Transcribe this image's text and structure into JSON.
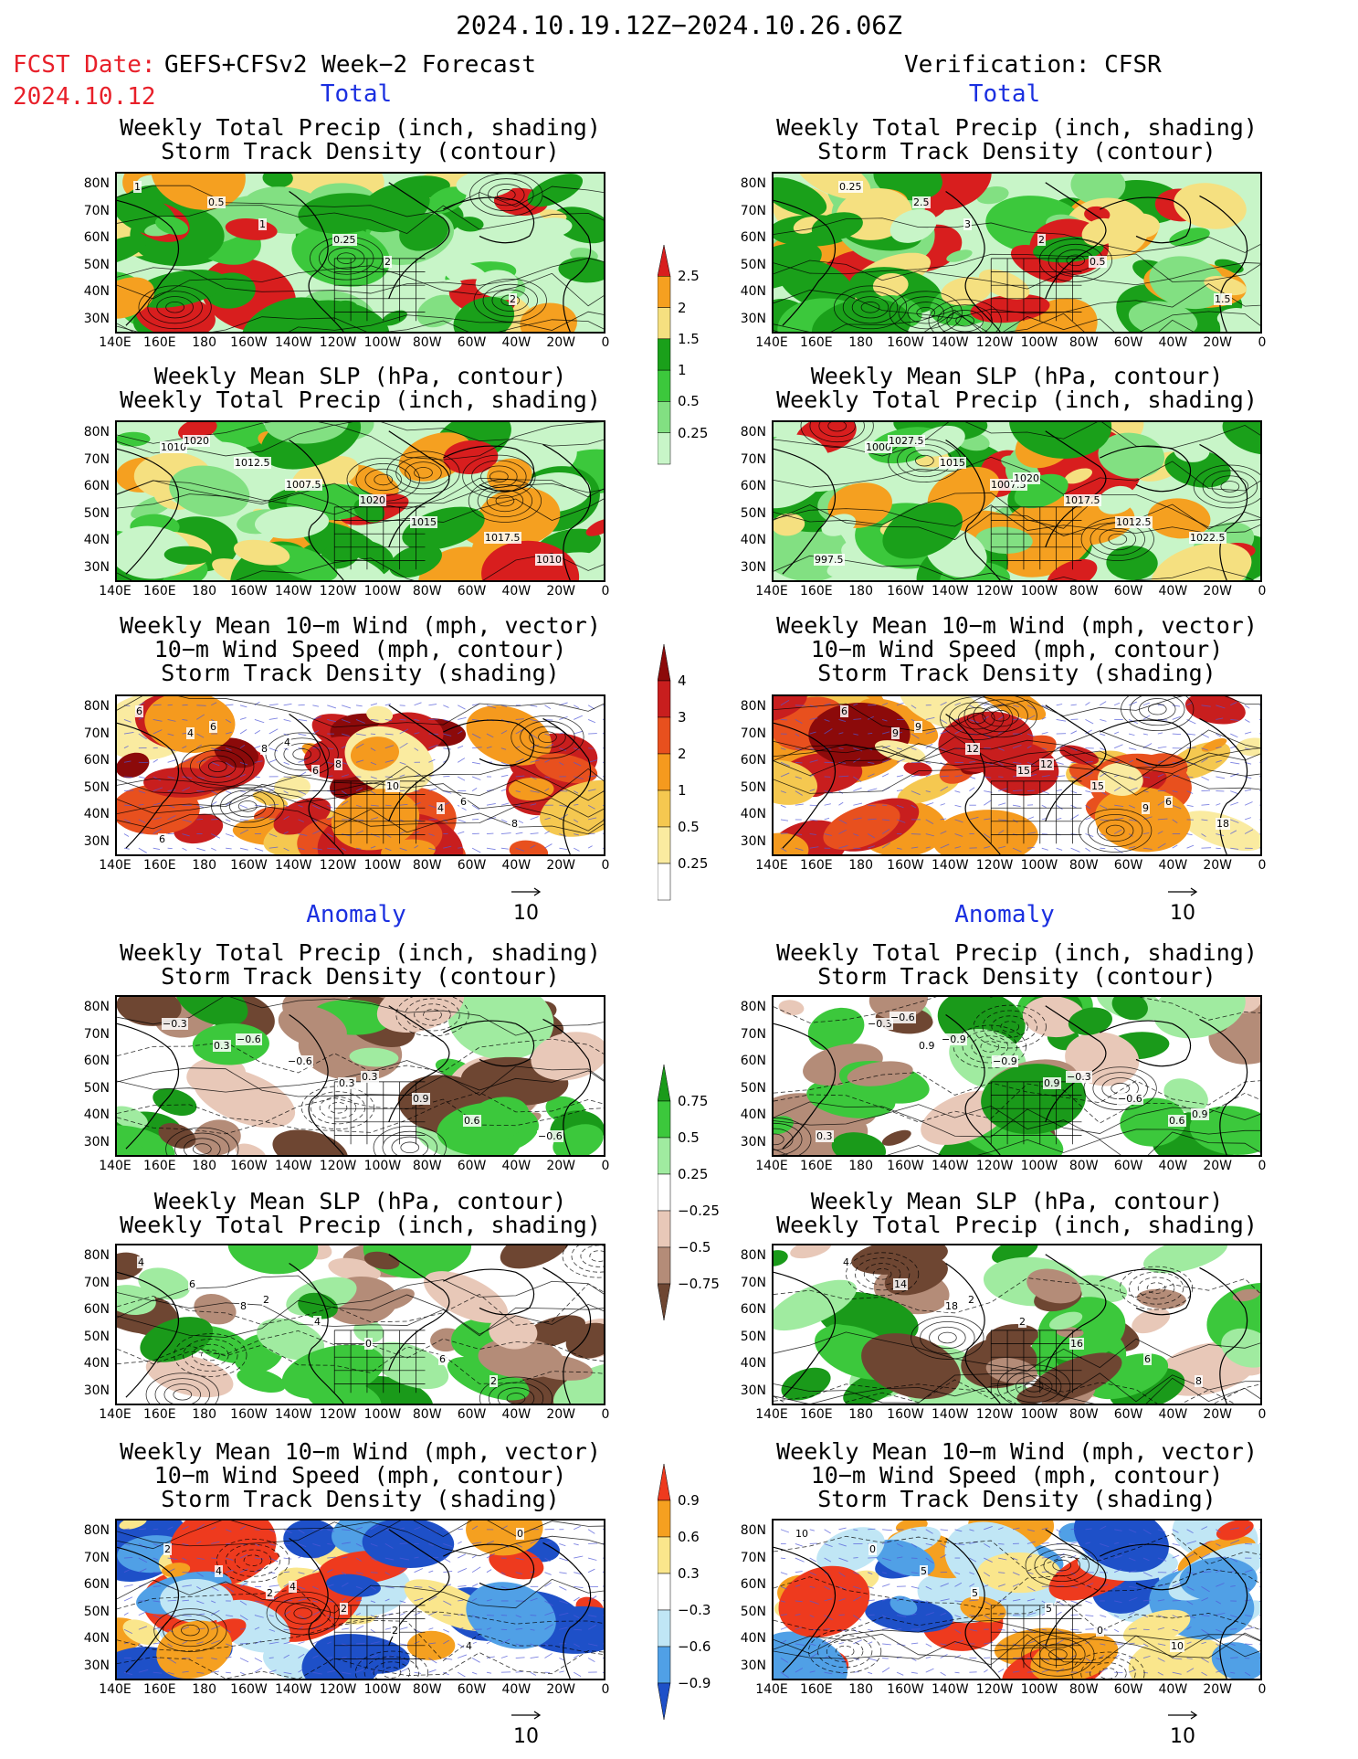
{
  "header": {
    "date_range": "2024.10.19.12Z−2024.10.26.06Z",
    "fcst_label": "FCST Date:",
    "fcst_model": "GEFS+CFSv2 Week−2 Forecast",
    "fcst_date": "2024.10.12",
    "verification": "Verification: CFSR"
  },
  "sections": {
    "total": "Total",
    "anomaly": "Anomaly"
  },
  "panel_titles": {
    "precip_storm": "Weekly Total Precip (inch, shading)\nStorm Track Density (contour)",
    "slp_precip": "Weekly Mean SLP (hPa, contour)\nWeekly Total Precip (inch, shading)",
    "wind_storm": "Weekly Mean 10−m Wind (mph, vector)\n10−m Wind Speed (mph, contour)\nStorm Track Density (shading)"
  },
  "axes": {
    "lat_ticks": [
      "80N",
      "70N",
      "60N",
      "50N",
      "40N",
      "30N"
    ],
    "lon_ticks": [
      "140E",
      "160E",
      "180",
      "160W",
      "140W",
      "120W",
      "100W",
      "80W",
      "60W",
      "40W",
      "20W",
      "0"
    ]
  },
  "vector_reference": "10",
  "colorbars": {
    "total_precip": {
      "labels": [
        "2.5",
        "2",
        "1.5",
        "1",
        "0.5",
        "0.25"
      ],
      "colors": [
        "#d81e1e",
        "#f5a020",
        "#f5e080",
        "#1aa01a",
        "#3cc83c",
        "#82e082",
        "#c8f5c8"
      ]
    },
    "total_storm": {
      "labels": [
        "4",
        "3",
        "2",
        "1",
        "0.5",
        "0.25"
      ],
      "colors": [
        "#8c0a0a",
        "#c81e1e",
        "#e8501e",
        "#f59a1e",
        "#f5c850",
        "#faeba0",
        "#ffffff"
      ]
    },
    "anom_precip": {
      "labels": [
        "0.75",
        "0.5",
        "0.25",
        "−0.25",
        "−0.5",
        "−0.75"
      ],
      "colors": [
        "#1a9a1a",
        "#3cc83c",
        "#a0eba0",
        "#ffffff",
        "#e8c8b8",
        "#b48c78",
        "#6e4632"
      ]
    },
    "anom_storm": {
      "labels": [
        "0.9",
        "0.6",
        "0.3",
        "−0.3",
        "−0.6",
        "−0.9"
      ],
      "colors": [
        "#ee3a1e",
        "#f5a020",
        "#fae68c",
        "#ffffff",
        "#c0e6f5",
        "#50a0e6",
        "#1e50c8"
      ]
    }
  },
  "map_labels": {
    "fcst_total_precip": [
      "1",
      "1",
      "2",
      "2",
      "0.5",
      "0.25"
    ],
    "verif_total_precip": [
      "0.25",
      "3",
      "0.5",
      "1.5",
      "2.5",
      "2"
    ],
    "fcst_total_slp": [
      "1010",
      "1007.5",
      "1015",
      "1010",
      "1012.5",
      "1020",
      "1017.5",
      "1020"
    ],
    "verif_total_slp": [
      "1000",
      "1007.5",
      "1012.5",
      "997.5",
      "1015",
      "1017.5",
      "1022.5",
      "1027.5",
      "1020"
    ],
    "fcst_total_wind": [
      "4",
      "6",
      "4",
      "6",
      "8",
      "10",
      "8",
      "6",
      "8",
      "6",
      "6",
      "4"
    ],
    "verif_total_wind": [
      "9",
      "15",
      "9",
      "6",
      "12",
      "15",
      "18",
      "9",
      "12",
      "6"
    ],
    "fcst_anom_precip": [
      "0.3",
      "0.3",
      "0.6",
      "−0.3",
      "−0.6",
      "0.9",
      "−0.6",
      "−0.6",
      "0.3"
    ],
    "verif_anom_precip": [
      "0.9",
      "0.9",
      "0.6",
      "−0.3",
      "−0.9",
      "−0.6",
      "0.3",
      "−0.9",
      "−0.3",
      "0.9",
      "−0.6"
    ],
    "fcst_anom_slp": [
      "8",
      "0",
      "2",
      "6",
      "4",
      "6",
      "4",
      "2"
    ],
    "verif_anom_slp": [
      "18",
      "16",
      "8",
      "14",
      "2",
      "6",
      "4",
      "2"
    ],
    "fcst_anom_wind": [
      "2",
      "2",
      "0",
      "4",
      "2",
      "4",
      "2",
      "4"
    ],
    "verif_anom_wind": [
      "5",
      "0",
      "10",
      "5",
      "5",
      "10",
      "0"
    ]
  }
}
